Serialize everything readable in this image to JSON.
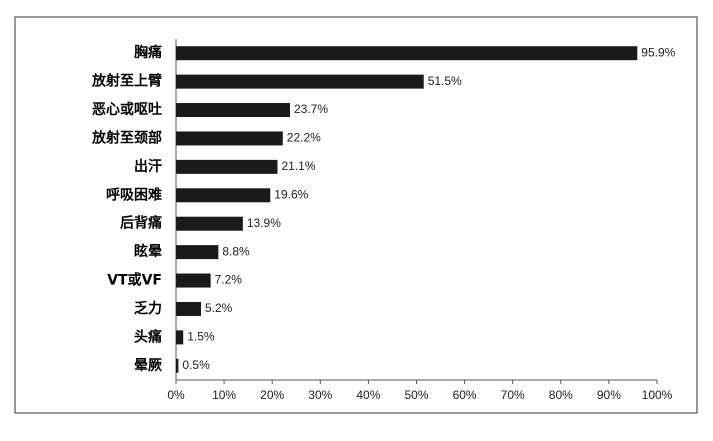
{
  "chart_data": {
    "type": "bar",
    "orientation": "horizontal",
    "categories": [
      "胸痛",
      "放射至上臂",
      "恶心或呕吐",
      "放射至颈部",
      "出汗",
      "呼吸困难",
      "后背痛",
      "眩晕",
      "VT或VF",
      "乏力",
      "头痛",
      "晕厥"
    ],
    "values": [
      95.9,
      51.5,
      23.7,
      22.2,
      21.1,
      19.6,
      13.9,
      8.8,
      7.2,
      5.2,
      1.5,
      0.5
    ],
    "value_labels": [
      "95.9%",
      "51.5%",
      "23.7%",
      "22.2%",
      "21.1%",
      "19.6%",
      "13.9%",
      "8.8%",
      "7.2%",
      "5.2%",
      "1.5%",
      "0.5%"
    ],
    "color": "#1a1a1a",
    "xlim": [
      0,
      100
    ],
    "xticks": [
      {
        "value": 0,
        "label": "0%"
      },
      {
        "value": 10,
        "label": "10%"
      },
      {
        "value": 20,
        "label": "20%"
      },
      {
        "value": 30,
        "label": "30%"
      },
      {
        "value": 40,
        "label": "40%"
      },
      {
        "value": 50,
        "label": "50%"
      },
      {
        "value": 60,
        "label": "60%"
      },
      {
        "value": 70,
        "label": "70%"
      },
      {
        "value": 80,
        "label": "80%"
      },
      {
        "value": 90,
        "label": "90%"
      },
      {
        "value": 100,
        "label": "100%"
      }
    ],
    "grid": false
  }
}
